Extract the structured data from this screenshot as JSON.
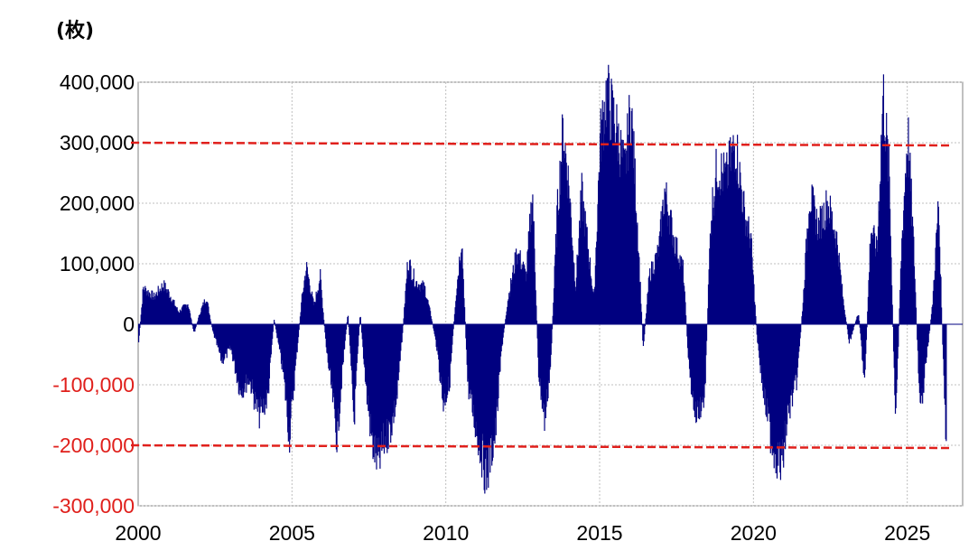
{
  "chart_data": {
    "type": "bar",
    "unit_label": "(枚)",
    "xlim": [
      2000,
      2026.8
    ],
    "ylim": [
      -300000,
      400000
    ],
    "x_ticks": [
      2000,
      2005,
      2010,
      2015,
      2020,
      2025
    ],
    "x_tick_labels": [
      "2000",
      "2005",
      "2010",
      "2015",
      "2020",
      "2025"
    ],
    "y_ticks": [
      400000,
      300000,
      200000,
      100000,
      0,
      -100000,
      -200000,
      -300000
    ],
    "y_tick_labels": [
      "400,000",
      "300,000",
      "200,000",
      "100,000",
      "0",
      "-100,000",
      "-200,000",
      "-300,000"
    ],
    "negative_label_color": "#e0201c",
    "bar_color": "#000080",
    "grid": true,
    "reference_lines": [
      {
        "value": 300000,
        "color": "#e0201c",
        "style": "dashed"
      },
      {
        "value": -200000,
        "color": "#e0201c",
        "style": "dashed"
      }
    ],
    "series_keypoints": [
      [
        2000.0,
        -30000
      ],
      [
        2000.15,
        60000
      ],
      [
        2000.5,
        45000
      ],
      [
        2000.8,
        65000
      ],
      [
        2001.0,
        50000
      ],
      [
        2001.3,
        20000
      ],
      [
        2001.6,
        35000
      ],
      [
        2001.8,
        -15000
      ],
      [
        2002.0,
        20000
      ],
      [
        2002.2,
        45000
      ],
      [
        2002.4,
        -10000
      ],
      [
        2002.7,
        -60000
      ],
      [
        2003.0,
        -40000
      ],
      [
        2003.3,
        -110000
      ],
      [
        2003.6,
        -90000
      ],
      [
        2003.9,
        -150000
      ],
      [
        2004.2,
        -120000
      ],
      [
        2004.4,
        10000
      ],
      [
        2004.7,
        -80000
      ],
      [
        2004.9,
        -185000
      ],
      [
        2005.1,
        -70000
      ],
      [
        2005.3,
        40000
      ],
      [
        2005.45,
        95000
      ],
      [
        2005.7,
        30000
      ],
      [
        2005.9,
        80000
      ],
      [
        2006.1,
        -40000
      ],
      [
        2006.3,
        -120000
      ],
      [
        2006.45,
        -190000
      ],
      [
        2006.6,
        -90000
      ],
      [
        2006.8,
        20000
      ],
      [
        2007.0,
        -160000
      ],
      [
        2007.2,
        20000
      ],
      [
        2007.4,
        -110000
      ],
      [
        2007.6,
        -200000
      ],
      [
        2007.8,
        -230000
      ],
      [
        2008.0,
        -190000
      ],
      [
        2008.2,
        -170000
      ],
      [
        2008.4,
        -120000
      ],
      [
        2008.6,
        0
      ],
      [
        2008.75,
        105000
      ],
      [
        2009.0,
        70000
      ],
      [
        2009.3,
        60000
      ],
      [
        2009.5,
        15000
      ],
      [
        2009.7,
        -40000
      ],
      [
        2009.9,
        -130000
      ],
      [
        2010.1,
        -100000
      ],
      [
        2010.3,
        40000
      ],
      [
        2010.5,
        145000
      ],
      [
        2010.7,
        -100000
      ],
      [
        2011.0,
        -180000
      ],
      [
        2011.3,
        -250000
      ],
      [
        2011.6,
        -180000
      ],
      [
        2011.8,
        -40000
      ],
      [
        2012.0,
        40000
      ],
      [
        2012.3,
        120000
      ],
      [
        2012.6,
        80000
      ],
      [
        2012.8,
        220000
      ],
      [
        2013.0,
        -80000
      ],
      [
        2013.2,
        -160000
      ],
      [
        2013.4,
        -60000
      ],
      [
        2013.6,
        180000
      ],
      [
        2013.8,
        320000
      ],
      [
        2014.0,
        220000
      ],
      [
        2014.2,
        60000
      ],
      [
        2014.4,
        215000
      ],
      [
        2014.6,
        130000
      ],
      [
        2014.8,
        40000
      ],
      [
        2015.0,
        300000
      ],
      [
        2015.2,
        380000
      ],
      [
        2015.5,
        330000
      ],
      [
        2015.8,
        250000
      ],
      [
        2016.0,
        360000
      ],
      [
        2016.2,
        180000
      ],
      [
        2016.4,
        -40000
      ],
      [
        2016.6,
        80000
      ],
      [
        2016.9,
        120000
      ],
      [
        2017.1,
        220000
      ],
      [
        2017.4,
        140000
      ],
      [
        2017.7,
        90000
      ],
      [
        2017.9,
        -80000
      ],
      [
        2018.1,
        -150000
      ],
      [
        2018.4,
        -120000
      ],
      [
        2018.6,
        180000
      ],
      [
        2018.8,
        260000
      ],
      [
        2019.1,
        240000
      ],
      [
        2019.4,
        300000
      ],
      [
        2019.7,
        180000
      ],
      [
        2019.9,
        140000
      ],
      [
        2020.1,
        -20000
      ],
      [
        2020.3,
        -110000
      ],
      [
        2020.6,
        -200000
      ],
      [
        2020.9,
        -235000
      ],
      [
        2021.1,
        -150000
      ],
      [
        2021.4,
        -90000
      ],
      [
        2021.6,
        40000
      ],
      [
        2021.8,
        215000
      ],
      [
        2022.1,
        160000
      ],
      [
        2022.4,
        200000
      ],
      [
        2022.7,
        140000
      ],
      [
        2022.9,
        40000
      ],
      [
        2023.1,
        -30000
      ],
      [
        2023.4,
        20000
      ],
      [
        2023.6,
        -100000
      ],
      [
        2023.8,
        160000
      ],
      [
        2024.0,
        120000
      ],
      [
        2024.2,
        380000
      ],
      [
        2024.4,
        240000
      ],
      [
        2024.6,
        -170000
      ],
      [
        2024.8,
        130000
      ],
      [
        2025.0,
        320000
      ],
      [
        2025.2,
        120000
      ],
      [
        2025.4,
        -150000
      ],
      [
        2025.6,
        -60000
      ],
      [
        2025.8,
        30000
      ],
      [
        2026.0,
        200000
      ],
      [
        2026.15,
        -60000
      ],
      [
        2026.25,
        -210000
      ]
    ]
  }
}
